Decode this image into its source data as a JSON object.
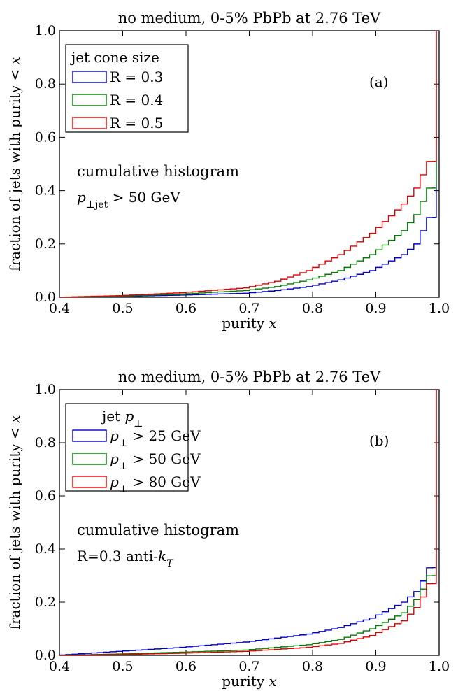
{
  "chart_data": [
    {
      "type": "line",
      "panel_label": "(a)",
      "title": "no medium, 0-5% PbPb at 2.76 TeV",
      "xlabel": "purity x",
      "ylabel": "fraction of jets with purity < x",
      "xlim": [
        0.4,
        1.0
      ],
      "ylim": [
        0.0,
        1.0
      ],
      "xticks": [
        "0.4",
        "0.5",
        "0.6",
        "0.7",
        "0.8",
        "0.9",
        "1.0"
      ],
      "yticks": [
        "0.0",
        "0.2",
        "0.4",
        "0.6",
        "0.8",
        "1.0"
      ],
      "grid": false,
      "style": "step",
      "legend": {
        "title": "jet cone size",
        "placement": "top-left",
        "entries": [
          "R = 0.3",
          "R = 0.4",
          "R = 0.5"
        ]
      },
      "annotations": [
        "cumulative histogram",
        "p⊥jet > 50 GeV"
      ],
      "annotation_colors": [
        "#ee1c1c",
        "#000000"
      ],
      "x": [
        0.4,
        0.5,
        0.6,
        0.7,
        0.75,
        0.8,
        0.85,
        0.9,
        0.95,
        0.97,
        0.98,
        0.99,
        1.0
      ],
      "series": [
        {
          "name": "R = 0.3",
          "color": "#0000cc",
          "values": [
            0.0,
            0.003,
            0.008,
            0.015,
            0.025,
            0.04,
            0.065,
            0.1,
            0.16,
            0.2,
            0.25,
            0.3,
            1.0
          ]
        },
        {
          "name": "R = 0.4",
          "color": "#007a00",
          "values": [
            0.0,
            0.004,
            0.012,
            0.025,
            0.04,
            0.065,
            0.1,
            0.16,
            0.25,
            0.31,
            0.36,
            0.41,
            1.0
          ]
        },
        {
          "name": "R = 0.5",
          "color": "#e00000",
          "values": [
            0.0,
            0.006,
            0.017,
            0.035,
            0.06,
            0.1,
            0.16,
            0.24,
            0.35,
            0.41,
            0.46,
            0.51,
            1.0
          ]
        }
      ]
    },
    {
      "type": "line",
      "panel_label": "(b)",
      "title": "no medium, 0-5% PbPb at 2.76 TeV",
      "xlabel": "purity x",
      "ylabel": "fraction of jets with purity < x",
      "xlim": [
        0.4,
        1.0
      ],
      "ylim": [
        0.0,
        1.0
      ],
      "xticks": [
        "0.4",
        "0.5",
        "0.6",
        "0.7",
        "0.8",
        "0.9",
        "1.0"
      ],
      "yticks": [
        "0.0",
        "0.2",
        "0.4",
        "0.6",
        "0.8",
        "1.0"
      ],
      "grid": false,
      "style": "step",
      "legend": {
        "title": "jet p⊥",
        "placement": "top-left",
        "entries": [
          "p⊥ > 25 GeV",
          "p⊥ > 50 GeV",
          "p⊥ > 80 GeV"
        ]
      },
      "annotations": [
        "cumulative histogram",
        "R=0.3 anti-kT"
      ],
      "annotation_colors": [
        "#ee1c1c",
        "#000000"
      ],
      "x": [
        0.4,
        0.5,
        0.6,
        0.7,
        0.8,
        0.85,
        0.9,
        0.95,
        0.97,
        0.98,
        0.99,
        1.0
      ],
      "series": [
        {
          "name": "p⊥ > 25 GeV",
          "color": "#0000cc",
          "values": [
            0.0,
            0.015,
            0.03,
            0.05,
            0.08,
            0.105,
            0.14,
            0.2,
            0.24,
            0.28,
            0.33,
            1.0
          ]
        },
        {
          "name": "p⊥ > 50 GeV",
          "color": "#007a00",
          "values": [
            0.0,
            0.005,
            0.012,
            0.02,
            0.04,
            0.06,
            0.1,
            0.16,
            0.21,
            0.25,
            0.3,
            1.0
          ]
        },
        {
          "name": "p⊥ > 80 GeV",
          "color": "#e00000",
          "values": [
            0.0,
            0.003,
            0.008,
            0.015,
            0.03,
            0.045,
            0.075,
            0.13,
            0.18,
            0.22,
            0.27,
            1.0
          ]
        }
      ]
    }
  ]
}
